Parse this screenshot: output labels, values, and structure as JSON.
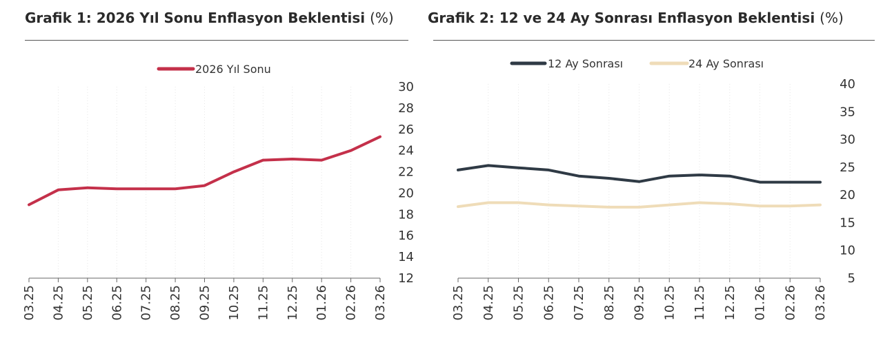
{
  "charts": [
    {
      "title": "Grafik 1: 2026 Yıl Sonu Enflasyon Beklentisi",
      "unit": "(%)"
    },
    {
      "title": "Grafik 2: 12 ve 24 Ay Sonrası Enflasyon Beklentisi",
      "unit": "(%)"
    }
  ],
  "chart_data": [
    {
      "type": "line",
      "title": "Grafik 1: 2026 Yıl Sonu Enflasyon Beklentisi (%)",
      "x": [
        "03.25",
        "04.25",
        "05.25",
        "06.25",
        "07.25",
        "08.25",
        "09.25",
        "10.25",
        "11.25",
        "12.25",
        "01.26",
        "02.26",
        "03.26"
      ],
      "series": [
        {
          "name": "2026 Yıl Sonu",
          "color": "#c4304a",
          "values": [
            18.9,
            20.3,
            20.5,
            20.4,
            20.4,
            20.4,
            20.7,
            22.0,
            23.1,
            23.2,
            23.1,
            24.0,
            25.3
          ]
        }
      ],
      "yticks": [
        12,
        14,
        16,
        18,
        20,
        22,
        24,
        26,
        28,
        30
      ],
      "ylim": [
        12,
        30
      ],
      "y_axis_side": "right",
      "grid": false,
      "legend_position": "top-center"
    },
    {
      "type": "line",
      "title": "Grafik 2: 12 ve 24 Ay Sonrası Enflasyon Beklentisi (%)",
      "x": [
        "03.25",
        "04.25",
        "05.25",
        "06.25",
        "07.25",
        "08.25",
        "09.25",
        "10.25",
        "11.25",
        "12.25",
        "01.26",
        "02.26",
        "03.26"
      ],
      "series": [
        {
          "name": "12 Ay Sonrası",
          "color": "#2f3a45",
          "values": [
            24.5,
            25.3,
            24.9,
            24.5,
            23.4,
            23.0,
            22.4,
            23.4,
            23.6,
            23.4,
            22.3,
            22.3,
            22.3
          ]
        },
        {
          "name": "24 Ay Sonrası",
          "color": "#efdcb8",
          "values": [
            17.9,
            18.6,
            18.6,
            18.2,
            18.0,
            17.8,
            17.8,
            18.2,
            18.6,
            18.4,
            18.0,
            18.0,
            18.2
          ]
        }
      ],
      "yticks": [
        5,
        10,
        15,
        20,
        25,
        30,
        35,
        40
      ],
      "ylim": [
        5,
        40
      ],
      "y_axis_side": "right",
      "grid": false,
      "legend_position": "top-center"
    }
  ]
}
